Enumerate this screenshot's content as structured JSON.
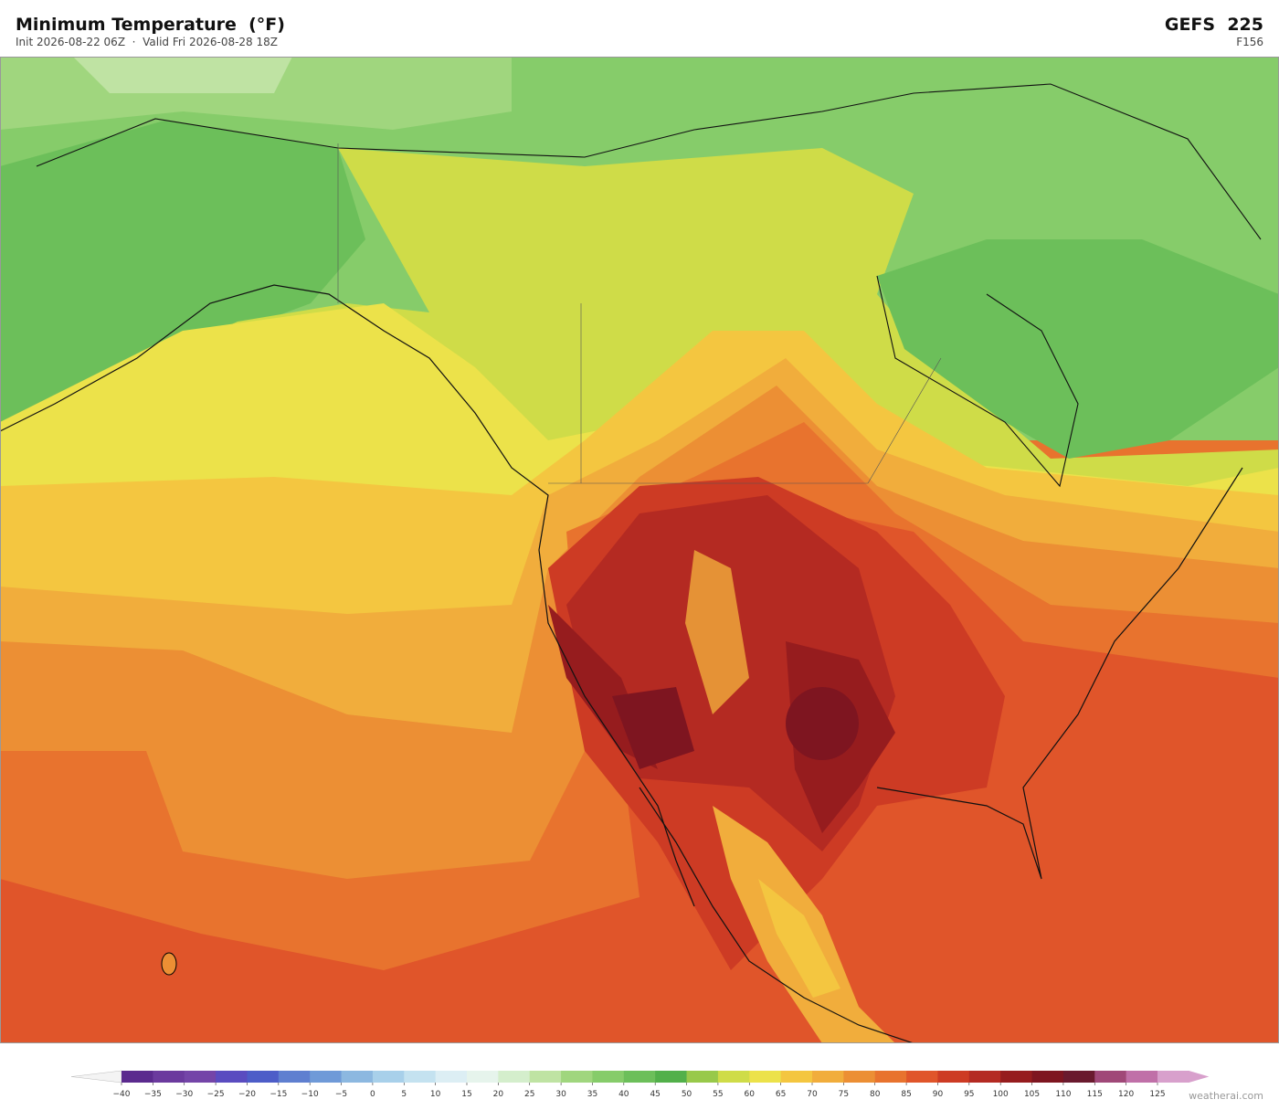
{
  "header": {
    "title": "Minimum Temperature  (°F)",
    "subtitle": "Init 2026-08-22 06Z  ·  Valid Fri 2026-08-28 18Z",
    "model": "GEFS  225",
    "forecast_hour": "F156"
  },
  "colorbar": {
    "ticks": [
      {
        "value": -40,
        "label": "−40"
      },
      {
        "value": -35,
        "label": "−35"
      },
      {
        "value": -30,
        "label": "−30"
      },
      {
        "value": -25,
        "label": "−25"
      },
      {
        "value": -20,
        "label": "−20"
      },
      {
        "value": -15,
        "label": "−15"
      },
      {
        "value": -10,
        "label": "−10"
      },
      {
        "value": -5,
        "label": "−5"
      },
      0,
      5,
      10,
      15,
      20,
      25,
      30,
      35,
      40,
      45,
      50,
      55,
      60,
      65,
      70,
      75,
      80,
      85,
      90,
      95,
      100,
      105,
      110,
      115,
      120,
      125
    ],
    "colors": [
      "#5b2a8e",
      "#6b3a9e",
      "#7445a8",
      "#5a4cc0",
      "#4d5dc8",
      "#5f7fd0",
      "#6f9ad8",
      "#8cb8e0",
      "#a8d0ea",
      "#c4e2f0",
      "#dceef4",
      "#e6f4ec",
      "#d4eecc",
      "#bfe3a3",
      "#a0d67e",
      "#86cc6a",
      "#6cbf5a",
      "#52b04a",
      "#98c94a",
      "#cfdc48",
      "#ece24a",
      "#f4c640",
      "#f1ad3c",
      "#ec8f34",
      "#e8732e",
      "#e0552a",
      "#cd3b24",
      "#b42a22",
      "#961c1e",
      "#7e1520",
      "#6a1a2e",
      "#a04878",
      "#c070a8",
      "#d8a0cc"
    ],
    "under_color": "#f4f4f4",
    "over_color": "#d8a0cc"
  },
  "footer": {
    "credit": "weatherai.com"
  }
}
